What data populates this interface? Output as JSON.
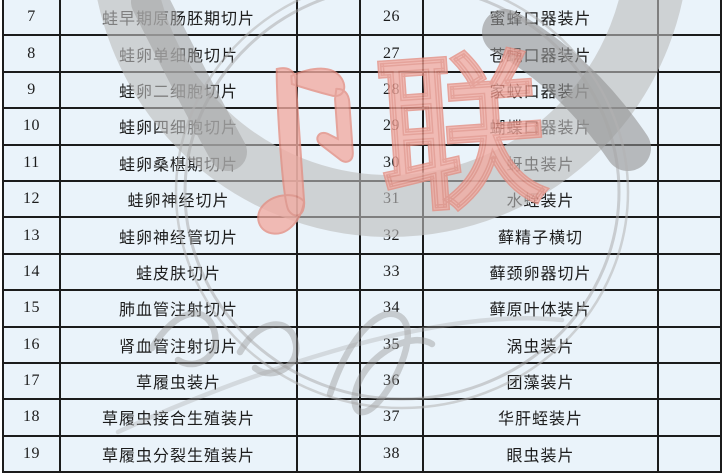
{
  "document": {
    "kind": "scanned specimen slide list table",
    "columns": {
      "number_header": "",
      "name_header": "",
      "blank_header": ""
    }
  },
  "table": {
    "left_rows": [
      {
        "no": "7",
        "name": "蛙早期原肠胚期切片"
      },
      {
        "no": "8",
        "name": "蛙卵单细胞切片"
      },
      {
        "no": "9",
        "name": "蛙卵二细胞切片"
      },
      {
        "no": "10",
        "name": "蛙卵四细胞切片"
      },
      {
        "no": "11",
        "name": "蛙卵桑椹期切片"
      },
      {
        "no": "12",
        "name": "蛙卵神经切片"
      },
      {
        "no": "13",
        "name": "蛙卵神经管切片"
      },
      {
        "no": "14",
        "name": "蛙皮肤切片"
      },
      {
        "no": "15",
        "name": "肺血管注射切片"
      },
      {
        "no": "16",
        "name": "肾血管注射切片"
      },
      {
        "no": "17",
        "name": "草履虫装片"
      },
      {
        "no": "18",
        "name": "草履虫接合生殖装片"
      },
      {
        "no": "19",
        "name": "草履虫分裂生殖装片"
      }
    ],
    "right_rows": [
      {
        "no": "26",
        "name": "蜜蜂口器装片"
      },
      {
        "no": "27",
        "name": "苍蝇口器装片"
      },
      {
        "no": "28",
        "name": "家蚊口器装片"
      },
      {
        "no": "29",
        "name": "蝴蝶口器装片"
      },
      {
        "no": "30",
        "name": "蚜虫装片"
      },
      {
        "no": "31",
        "name": "水蛭装片"
      },
      {
        "no": "32",
        "name": "藓精子横切"
      },
      {
        "no": "33",
        "name": "藓颈卵器切片"
      },
      {
        "no": "34",
        "name": "藓原叶体装片"
      },
      {
        "no": "35",
        "name": "涡虫装片"
      },
      {
        "no": "36",
        "name": "团藻装片"
      },
      {
        "no": "37",
        "name": "华肝蛭装片"
      },
      {
        "no": "38",
        "name": "眼虫装片"
      }
    ]
  },
  "watermark": {
    "stamp_char_right": "联",
    "stamp_red": "#f2aba1",
    "stamp_red_dark": "#e48d81",
    "ring_gray": "#b5b5b5",
    "ring_gray_dark": "#989898"
  },
  "colors": {
    "cell_bg": "#eaf3fa",
    "grid": "#1b1b1b",
    "text": "#1c1c1c",
    "page_bg": "#ffffff"
  }
}
